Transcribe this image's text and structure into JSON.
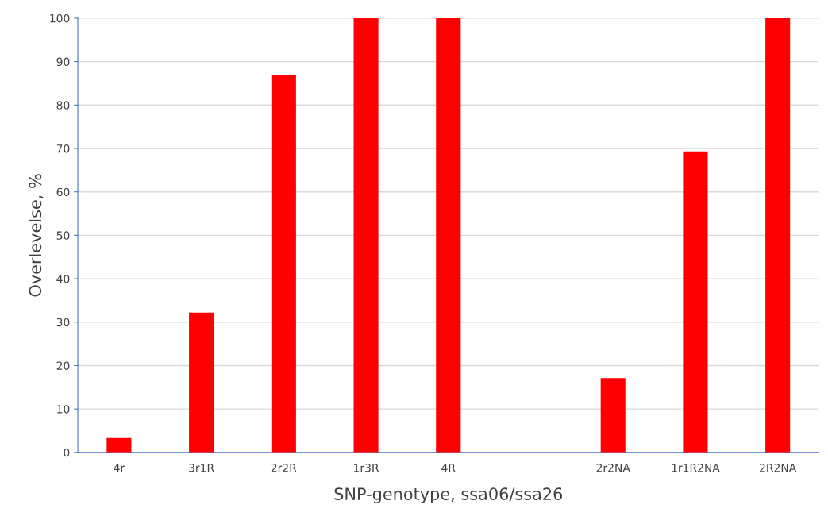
{
  "chart_data": {
    "type": "bar",
    "xlabel": "SNP-genotype, ssa06/ssa26",
    "ylabel": "Overlevelse, %",
    "categories": [
      "4r",
      "3r1R",
      "2r2R",
      "1r3R",
      "4R",
      null,
      "2r2NA",
      "1r1R2NA",
      "2R2NA"
    ],
    "values": [
      3.3,
      32.2,
      86.8,
      100,
      100,
      null,
      17.1,
      69.3,
      100
    ],
    "color": "#ff0000",
    "ylim": [
      0,
      100
    ],
    "yticks": [
      0,
      10,
      20,
      30,
      40,
      50,
      60,
      70,
      80,
      90,
      100
    ],
    "grid": "y",
    "legend": false
  }
}
